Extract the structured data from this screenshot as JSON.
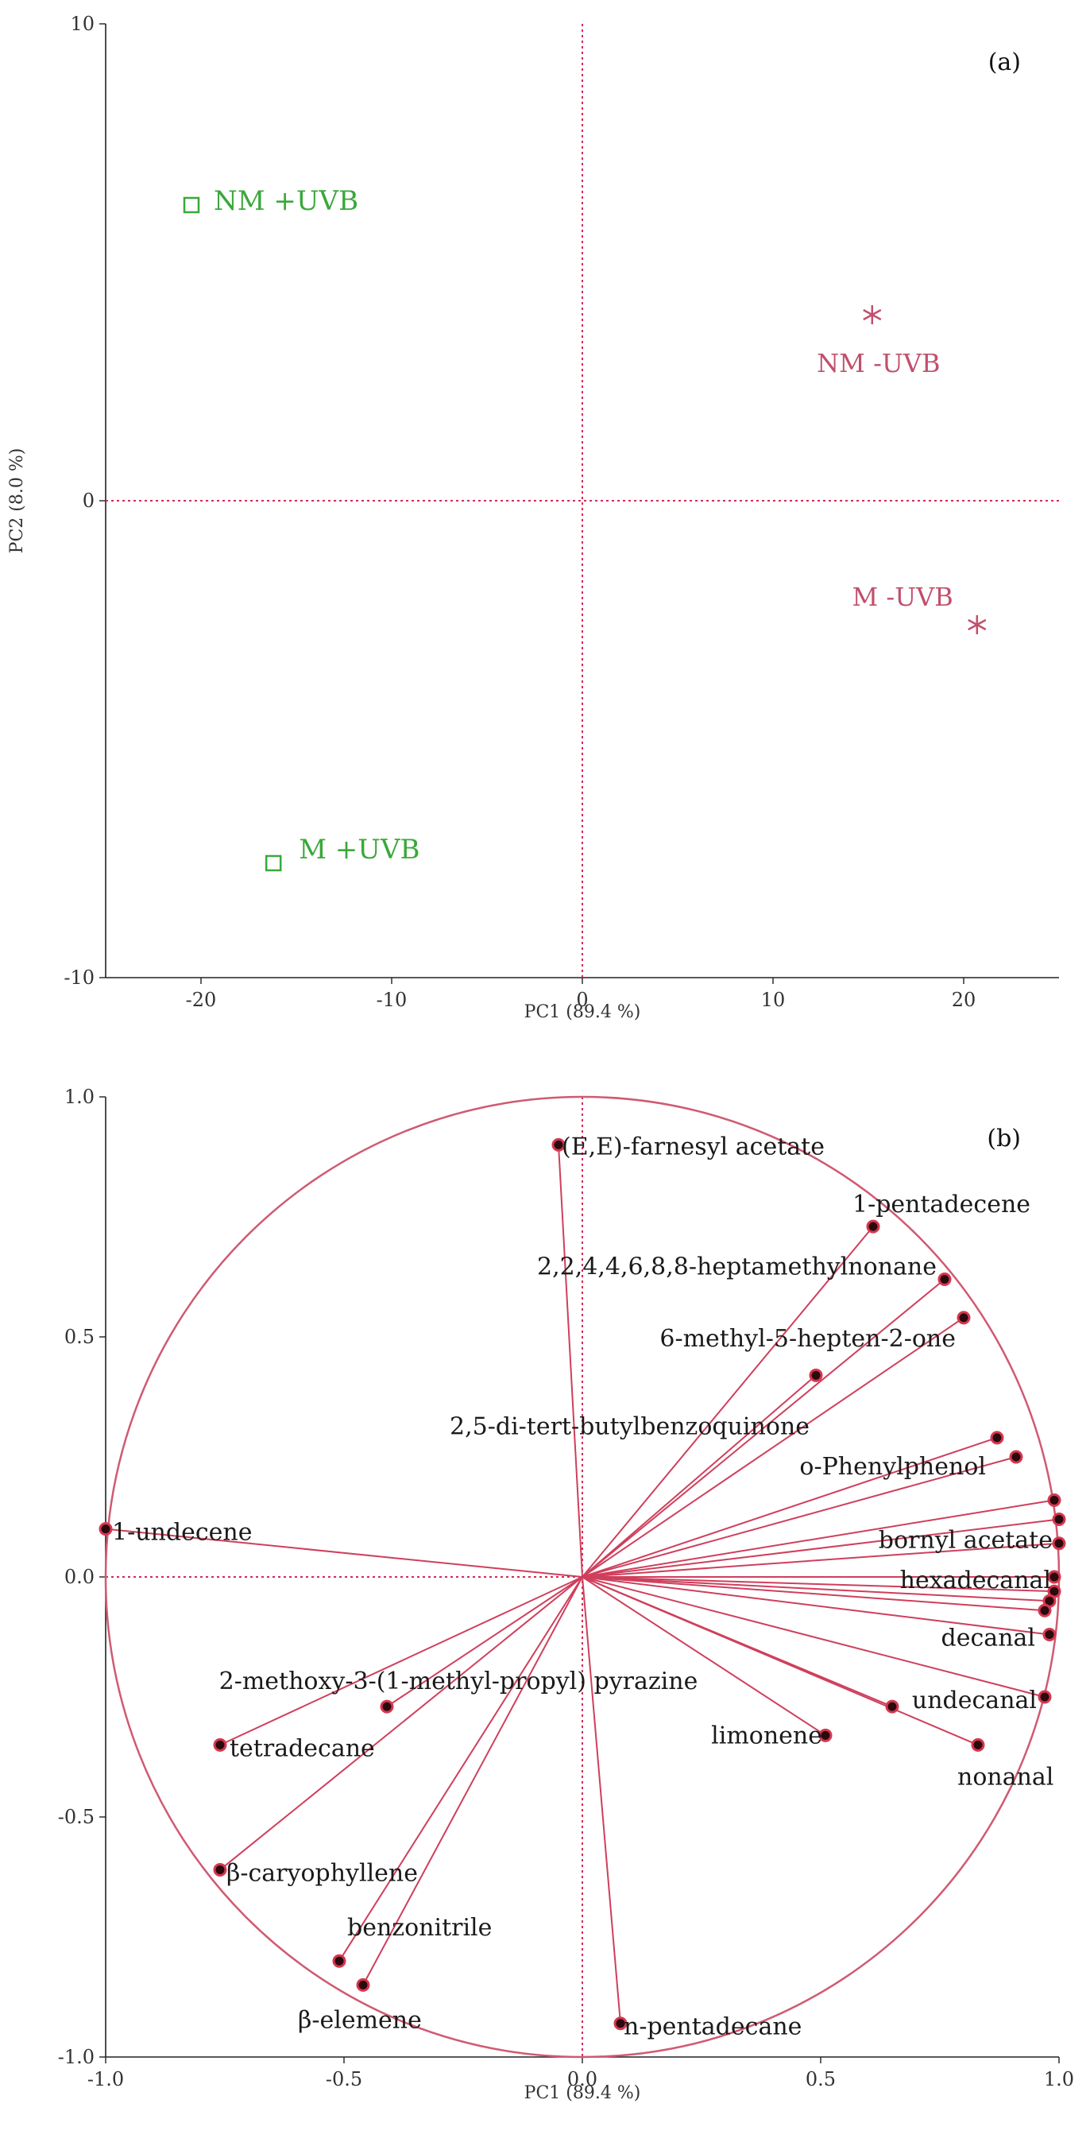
{
  "colors": {
    "score_plus_uvb": "#3aa83a",
    "score_minus_uvb": "#c0506c",
    "loading_line": "#cf3f5c",
    "zero_line": "#d42a55"
  },
  "chart_data": [
    {
      "type": "scatter",
      "panel": "(a)",
      "xlabel": "PC1 (89.4 %)",
      "ylabel": "PC2 (8.0 %)",
      "xlim": [
        -25,
        25
      ],
      "ylim": [
        -10,
        10
      ],
      "xticks": [
        "-20",
        "-10",
        "0",
        "10",
        "20"
      ],
      "yticks": [
        "-10",
        "0",
        "10"
      ],
      "points": [
        {
          "label": "NM +UVB",
          "x": -20.5,
          "y": 6.2,
          "marker": "square",
          "group": "+UVB"
        },
        {
          "label": "NM -UVB",
          "x": 15.2,
          "y": 3.9,
          "marker": "asterisk",
          "group": "-UVB"
        },
        {
          "label": "M -UVB",
          "x": 20.7,
          "y": -2.6,
          "marker": "asterisk",
          "group": "-UVB"
        },
        {
          "label": "M +UVB",
          "x": -16.2,
          "y": -7.6,
          "marker": "square",
          "group": "+UVB"
        }
      ]
    },
    {
      "type": "scatter",
      "panel": "(b)",
      "xlabel": "PC1 (89.4 %)",
      "ylabel": "",
      "xlim": [
        -1.0,
        1.0
      ],
      "ylim": [
        -1.0,
        1.0
      ],
      "xticks": [
        "-1.0",
        "-0.5",
        "0.0",
        "0.5",
        "1.0"
      ],
      "yticks": [
        "1.0",
        "0.5",
        "0.0",
        "-0.5",
        "-1.0"
      ],
      "loadings": [
        {
          "label": "(E,E)-farnesyl acetate",
          "x": -0.05,
          "y": 0.9
        },
        {
          "label": "1-pentadecene",
          "x": 0.61,
          "y": 0.73
        },
        {
          "label": "2,2,4,4,6,8,8-heptamethylnonane",
          "x": 0.76,
          "y": 0.62
        },
        {
          "label": "6-methyl-5-hepten-2-one",
          "x": 0.8,
          "y": 0.54
        },
        {
          "label": "2,5-di-tert-butylbenzoquinone",
          "x": 0.49,
          "y": 0.42
        },
        {
          "label": "o-Phenylphenol",
          "x": 0.87,
          "y": 0.29
        },
        {
          "label": "",
          "x": 0.91,
          "y": 0.25
        },
        {
          "label": "1-undecene",
          "x": -1.0,
          "y": 0.1
        },
        {
          "label": "",
          "x": 0.99,
          "y": 0.16
        },
        {
          "label": "bornyl acetate",
          "x": 1.0,
          "y": 0.12
        },
        {
          "label": "",
          "x": 1.0,
          "y": 0.07
        },
        {
          "label": "hexadecanal",
          "x": 0.99,
          "y": 0.0
        },
        {
          "label": "",
          "x": 0.99,
          "y": -0.03
        },
        {
          "label": "",
          "x": 0.98,
          "y": -0.05
        },
        {
          "label": "",
          "x": 0.97,
          "y": -0.07
        },
        {
          "label": "decanal",
          "x": 0.98,
          "y": -0.12
        },
        {
          "label": "undecanal",
          "x": 0.97,
          "y": -0.25
        },
        {
          "label": "",
          "x": 0.65,
          "y": -0.27
        },
        {
          "label": "limonene",
          "x": 0.51,
          "y": -0.33
        },
        {
          "label": "nonanal",
          "x": 0.83,
          "y": -0.35
        },
        {
          "label": "2-methoxy-3-(1-methyl-propyl) pyrazine",
          "x": -0.41,
          "y": -0.27
        },
        {
          "label": "tetradecane",
          "x": -0.76,
          "y": -0.35
        },
        {
          "label": "β-caryophyllene",
          "x": -0.76,
          "y": -0.61
        },
        {
          "label": "benzonitrile",
          "x": -0.51,
          "y": -0.8
        },
        {
          "label": "β-elemene",
          "x": -0.46,
          "y": -0.85
        },
        {
          "label": "n-pentadecane",
          "x": 0.08,
          "y": -0.93
        }
      ]
    }
  ]
}
